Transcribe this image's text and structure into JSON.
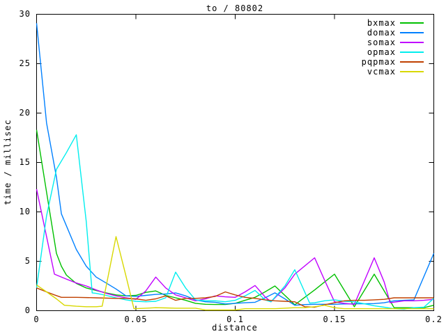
{
  "figure": {
    "background_color": "#ffffff",
    "border_color": "#000000"
  },
  "chart_data": {
    "type": "line",
    "title": "to / 80802",
    "xlabel": "distance",
    "ylabel": "time / millisec",
    "xlim": [
      0,
      0.2
    ],
    "ylim": [
      0,
      30
    ],
    "x_tick_values": [
      0,
      0.05,
      0.1,
      0.15,
      0.2
    ],
    "x_tick_labels": [
      "0",
      "0.05",
      "0.1",
      "0.15",
      "0.2"
    ],
    "y_tick_values": [
      0,
      5,
      10,
      15,
      20,
      25,
      30
    ],
    "y_tick_labels": [
      "0",
      "5",
      "10",
      "15",
      "20",
      "25",
      "30"
    ],
    "grid": false,
    "legend_position": "top-right-inside",
    "series": [
      {
        "name": "bxmax",
        "color": "#00c000",
        "points": [
          [
            0,
            18.3
          ],
          [
            0.005,
            12.0
          ],
          [
            0.01,
            5.8
          ],
          [
            0.0125,
            4.5
          ],
          [
            0.015,
            3.6
          ],
          [
            0.02,
            2.75
          ],
          [
            0.025,
            2.3
          ],
          [
            0.03,
            2.05
          ],
          [
            0.035,
            1.8
          ],
          [
            0.04,
            1.6
          ],
          [
            0.045,
            1.5
          ],
          [
            0.05,
            1.55
          ],
          [
            0.055,
            1.85
          ],
          [
            0.06,
            2.0
          ],
          [
            0.065,
            1.55
          ],
          [
            0.07,
            1.3
          ],
          [
            0.075,
            1.05
          ],
          [
            0.08,
            0.75
          ],
          [
            0.085,
            0.65
          ],
          [
            0.09,
            0.63
          ],
          [
            0.095,
            0.63
          ],
          [
            0.1,
            0.75
          ],
          [
            0.105,
            1.05
          ],
          [
            0.11,
            1.35
          ],
          [
            0.115,
            1.9
          ],
          [
            0.12,
            2.5
          ],
          [
            0.125,
            1.55
          ],
          [
            0.13,
            0.6
          ],
          [
            0.135,
            1.35
          ],
          [
            0.14,
            2.1
          ],
          [
            0.145,
            2.9
          ],
          [
            0.15,
            3.7
          ],
          [
            0.155,
            2.05
          ],
          [
            0.16,
            0.4
          ],
          [
            0.165,
            2.05
          ],
          [
            0.17,
            3.7
          ],
          [
            0.175,
            2.0
          ],
          [
            0.18,
            0.3
          ],
          [
            0.185,
            0.3
          ],
          [
            0.19,
            0.3
          ],
          [
            0.195,
            0.3
          ],
          [
            0.2,
            0.55
          ]
        ]
      },
      {
        "name": "domax",
        "color": "#0080ff",
        "points": [
          [
            0,
            29.1
          ],
          [
            0.005,
            19.0
          ],
          [
            0.01,
            13.5
          ],
          [
            0.0125,
            9.8
          ],
          [
            0.02,
            6.2
          ],
          [
            0.025,
            4.5
          ],
          [
            0.03,
            3.4
          ],
          [
            0.035,
            2.8
          ],
          [
            0.04,
            2.2
          ],
          [
            0.045,
            1.5
          ],
          [
            0.05,
            1.45
          ],
          [
            0.055,
            1.55
          ],
          [
            0.06,
            1.65
          ],
          [
            0.065,
            1.7
          ],
          [
            0.07,
            1.8
          ],
          [
            0.075,
            1.5
          ],
          [
            0.08,
            1.1
          ],
          [
            0.085,
            0.9
          ],
          [
            0.09,
            0.85
          ],
          [
            0.095,
            0.68
          ],
          [
            0.1,
            0.75
          ],
          [
            0.105,
            0.8
          ],
          [
            0.11,
            0.85
          ],
          [
            0.115,
            1.3
          ],
          [
            0.12,
            1.8
          ],
          [
            0.125,
            1.2
          ],
          [
            0.13,
            0.55
          ],
          [
            0.135,
            0.62
          ],
          [
            0.14,
            0.65
          ],
          [
            0.145,
            0.65
          ],
          [
            0.15,
            0.65
          ],
          [
            0.155,
            0.68
          ],
          [
            0.16,
            0.7
          ],
          [
            0.165,
            0.7
          ],
          [
            0.17,
            0.72
          ],
          [
            0.175,
            0.8
          ],
          [
            0.18,
            1.0
          ],
          [
            0.185,
            1.05
          ],
          [
            0.19,
            1.1
          ],
          [
            0.2,
            5.8
          ]
        ]
      },
      {
        "name": "somax",
        "color": "#c000ff",
        "points": [
          [
            0,
            12.3
          ],
          [
            0.005,
            7.5
          ],
          [
            0.009,
            3.7
          ],
          [
            0.015,
            3.2
          ],
          [
            0.02,
            2.8
          ],
          [
            0.025,
            2.5
          ],
          [
            0.03,
            2.1
          ],
          [
            0.035,
            1.75
          ],
          [
            0.04,
            1.5
          ],
          [
            0.045,
            1.3
          ],
          [
            0.05,
            1.15
          ],
          [
            0.055,
            2.0
          ],
          [
            0.06,
            3.4
          ],
          [
            0.065,
            2.3
          ],
          [
            0.07,
            1.6
          ],
          [
            0.075,
            1.3
          ],
          [
            0.08,
            1.0
          ],
          [
            0.085,
            1.2
          ],
          [
            0.09,
            1.5
          ],
          [
            0.095,
            1.4
          ],
          [
            0.1,
            1.35
          ],
          [
            0.105,
            1.9
          ],
          [
            0.11,
            2.55
          ],
          [
            0.115,
            1.4
          ],
          [
            0.118,
            0.9
          ],
          [
            0.125,
            2.3
          ],
          [
            0.13,
            3.7
          ],
          [
            0.14,
            5.35
          ],
          [
            0.145,
            3.1
          ],
          [
            0.15,
            0.9
          ],
          [
            0.155,
            0.75
          ],
          [
            0.16,
            0.65
          ],
          [
            0.165,
            3.0
          ],
          [
            0.17,
            5.35
          ],
          [
            0.175,
            2.9
          ],
          [
            0.178,
            0.8
          ],
          [
            0.185,
            1.0
          ],
          [
            0.19,
            1.0
          ],
          [
            0.195,
            1.05
          ],
          [
            0.2,
            1.15
          ]
        ]
      },
      {
        "name": "opmax",
        "color": "#00eeee",
        "points": [
          [
            0,
            2.3
          ],
          [
            0.005,
            9.6
          ],
          [
            0.01,
            14.3
          ],
          [
            0.015,
            16.0
          ],
          [
            0.02,
            17.8
          ],
          [
            0.025,
            9.0
          ],
          [
            0.028,
            1.8
          ],
          [
            0.03,
            1.75
          ],
          [
            0.035,
            1.55
          ],
          [
            0.04,
            1.3
          ],
          [
            0.045,
            1.1
          ],
          [
            0.05,
            0.95
          ],
          [
            0.055,
            0.9
          ],
          [
            0.06,
            0.95
          ],
          [
            0.065,
            1.3
          ],
          [
            0.07,
            3.9
          ],
          [
            0.075,
            2.3
          ],
          [
            0.08,
            1.1
          ],
          [
            0.085,
            1.0
          ],
          [
            0.09,
            1.0
          ],
          [
            0.095,
            0.9
          ],
          [
            0.1,
            1.05
          ],
          [
            0.105,
            1.5
          ],
          [
            0.11,
            2.05
          ],
          [
            0.115,
            1.1
          ],
          [
            0.118,
            0.9
          ],
          [
            0.125,
            2.5
          ],
          [
            0.13,
            4.15
          ],
          [
            0.1375,
            0.77
          ],
          [
            0.14,
            0.8
          ],
          [
            0.145,
            1.0
          ],
          [
            0.15,
            1.1
          ],
          [
            0.155,
            0.95
          ],
          [
            0.16,
            0.9
          ],
          [
            0.165,
            0.7
          ],
          [
            0.17,
            0.5
          ],
          [
            0.175,
            0.35
          ],
          [
            0.18,
            0.2
          ],
          [
            0.185,
            0.15
          ],
          [
            0.19,
            0.3
          ],
          [
            0.195,
            0.35
          ],
          [
            0.2,
            1.25
          ]
        ]
      },
      {
        "name": "pqpmax",
        "color": "#c04000",
        "points": [
          [
            0,
            2.3
          ],
          [
            0.005,
            1.9
          ],
          [
            0.009,
            1.6
          ],
          [
            0.0125,
            1.35
          ],
          [
            0.02,
            1.35
          ],
          [
            0.03,
            1.3
          ],
          [
            0.04,
            1.25
          ],
          [
            0.045,
            1.25
          ],
          [
            0.05,
            1.2
          ],
          [
            0.055,
            1.05
          ],
          [
            0.06,
            1.2
          ],
          [
            0.065,
            1.5
          ],
          [
            0.07,
            1.05
          ],
          [
            0.075,
            1.25
          ],
          [
            0.08,
            1.25
          ],
          [
            0.085,
            1.3
          ],
          [
            0.09,
            1.45
          ],
          [
            0.095,
            1.9
          ],
          [
            0.1,
            1.6
          ],
          [
            0.105,
            1.35
          ],
          [
            0.11,
            1.25
          ],
          [
            0.115,
            1.1
          ],
          [
            0.12,
            1.0
          ],
          [
            0.125,
            0.95
          ],
          [
            0.13,
            0.9
          ],
          [
            0.135,
            0.4
          ],
          [
            0.14,
            0.35
          ],
          [
            0.145,
            0.6
          ],
          [
            0.15,
            0.8
          ],
          [
            0.155,
            1.0
          ],
          [
            0.16,
            1.05
          ],
          [
            0.165,
            1.05
          ],
          [
            0.17,
            1.1
          ],
          [
            0.175,
            1.15
          ],
          [
            0.18,
            1.3
          ],
          [
            0.185,
            1.3
          ],
          [
            0.19,
            1.3
          ],
          [
            0.195,
            1.3
          ],
          [
            0.2,
            1.3
          ]
        ]
      },
      {
        "name": "vcmax",
        "color": "#d8d800",
        "points": [
          [
            0,
            2.6
          ],
          [
            0.005,
            1.9
          ],
          [
            0.01,
            1.2
          ],
          [
            0.014,
            0.55
          ],
          [
            0.02,
            0.45
          ],
          [
            0.025,
            0.4
          ],
          [
            0.03,
            0.4
          ],
          [
            0.033,
            0.45
          ],
          [
            0.04,
            7.5
          ],
          [
            0.045,
            3.5
          ],
          [
            0.049,
            0.2
          ],
          [
            0.055,
            0.25
          ],
          [
            0.06,
            0.3
          ],
          [
            0.065,
            0.28
          ],
          [
            0.07,
            0.25
          ],
          [
            0.075,
            0.25
          ],
          [
            0.08,
            0.25
          ],
          [
            0.085,
            0.07
          ],
          [
            0.09,
            0.07
          ],
          [
            0.095,
            0.07
          ],
          [
            0.1,
            0.07
          ],
          [
            0.105,
            0.2
          ],
          [
            0.11,
            0.2
          ],
          [
            0.115,
            0.2
          ],
          [
            0.12,
            0.2
          ],
          [
            0.125,
            0.25
          ],
          [
            0.13,
            0.3
          ],
          [
            0.135,
            0.3
          ],
          [
            0.14,
            0.4
          ],
          [
            0.145,
            0.55
          ],
          [
            0.15,
            0.3
          ],
          [
            0.155,
            0.2
          ],
          [
            0.16,
            0.2
          ],
          [
            0.165,
            0.2
          ],
          [
            0.17,
            0.2
          ],
          [
            0.175,
            0.2
          ],
          [
            0.18,
            0.2
          ],
          [
            0.185,
            0.2
          ],
          [
            0.19,
            0.2
          ],
          [
            0.195,
            0.2
          ],
          [
            0.2,
            0.2
          ]
        ]
      }
    ]
  }
}
